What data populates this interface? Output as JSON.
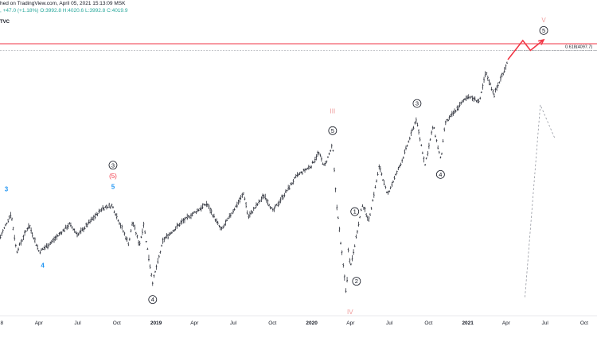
{
  "header": {
    "line1": "hed on TradingView.com, April 05, 2021 15:13:09 MSK",
    "line2_change": ", +47.0 (+1.18%)",
    "line2_ohlc": "O:3992.8 H:4020.6 L:3992.8 C:4019.9",
    "line3": "TVC"
  },
  "colors": {
    "resistance_line": "#f23645",
    "projection_arrow": "#f23645",
    "price_bars": "#131722",
    "wave_blue": "#2196f3",
    "wave_red": "#f23645",
    "wave_pink": "#ef9a9a",
    "ohlc_up": "#26a69a"
  },
  "chart_data": {
    "type": "line",
    "grid": false,
    "x_axis": {
      "tick_labels": [
        "8",
        "Apr",
        "Jul",
        "Oct",
        "2019",
        "Apr",
        "Jul",
        "Oct",
        "2020",
        "Apr",
        "Jul",
        "Oct",
        "2021",
        "Apr",
        "Jul",
        "Oct"
      ],
      "tick_dates": [
        "2018-01",
        "2018-04",
        "2018-07",
        "2018-10",
        "2019-01",
        "2019-04",
        "2019-07",
        "2019-10",
        "2020-01",
        "2020-04",
        "2020-07",
        "2020-10",
        "2021-01",
        "2021-04",
        "2021-07",
        "2021-10"
      ],
      "year_ticks": [
        "2019",
        "2020",
        "2021"
      ],
      "range": [
        "2017-12-31",
        "2021-10-31"
      ]
    },
    "y_axis": {
      "range": [
        2100,
        4300
      ],
      "scale": "linear"
    },
    "price_path": [
      [
        "2018-01-01",
        2695
      ],
      [
        "2018-01-26",
        2872
      ],
      [
        "2018-02-08",
        2581
      ],
      [
        "2018-03-09",
        2786
      ],
      [
        "2018-04-02",
        2581
      ],
      [
        "2018-05-01",
        2655
      ],
      [
        "2018-06-12",
        2790
      ],
      [
        "2018-07-02",
        2710
      ],
      [
        "2018-08-29",
        2914
      ],
      [
        "2018-09-20",
        2930
      ],
      [
        "2018-10-29",
        2641
      ],
      [
        "2018-11-07",
        2813
      ],
      [
        "2018-11-23",
        2633
      ],
      [
        "2018-12-03",
        2790
      ],
      [
        "2018-12-24",
        2351
      ],
      [
        "2019-01-18",
        2671
      ],
      [
        "2019-03-01",
        2803
      ],
      [
        "2019-04-30",
        2946
      ],
      [
        "2019-06-03",
        2744
      ],
      [
        "2019-07-26",
        3025
      ],
      [
        "2019-08-05",
        2844
      ],
      [
        "2019-09-12",
        3009
      ],
      [
        "2019-10-02",
        2888
      ],
      [
        "2019-11-27",
        3153
      ],
      [
        "2019-12-31",
        3231
      ],
      [
        "2020-01-17",
        3330
      ],
      [
        "2020-01-31",
        3225
      ],
      [
        "2020-02-19",
        3386
      ],
      [
        "2020-02-28",
        2954
      ],
      [
        "2020-03-23",
        2237
      ],
      [
        "2020-03-26",
        2630
      ],
      [
        "2020-04-01",
        2470
      ],
      [
        "2020-04-29",
        2939
      ],
      [
        "2020-05-14",
        2820
      ],
      [
        "2020-06-08",
        3232
      ],
      [
        "2020-06-26",
        3009
      ],
      [
        "2020-07-31",
        3271
      ],
      [
        "2020-09-02",
        3580
      ],
      [
        "2020-09-23",
        3237
      ],
      [
        "2020-10-12",
        3535
      ],
      [
        "2020-10-30",
        3270
      ],
      [
        "2020-11-09",
        3550
      ],
      [
        "2020-12-31",
        3756
      ],
      [
        "2021-01-29",
        3714
      ],
      [
        "2021-02-12",
        3934
      ],
      [
        "2021-03-04",
        3768
      ],
      [
        "2021-04-05",
        4019.9
      ]
    ],
    "levels": [
      {
        "kind": "resistance",
        "value": 4150
      },
      {
        "kind": "fibonacci",
        "value": 4097.7,
        "label": "0.618(4097.7)",
        "from": "2021-04-05"
      }
    ],
    "projection": {
      "arrow_path": [
        [
          "2021-04-05",
          4030
        ],
        [
          "2021-05-10",
          4175
        ],
        [
          "2021-05-28",
          4100
        ],
        [
          "2021-06-28",
          4180
        ]
      ],
      "dashed_path": [
        [
          "2021-05-15",
          2240
        ],
        [
          "2021-06-20",
          3690
        ],
        [
          "2021-07-25",
          3430
        ]
      ]
    },
    "annotations": [
      {
        "text": "3",
        "style": "blue",
        "x": "2018-01-15",
        "y": 3055
      },
      {
        "text": "4",
        "style": "blue",
        "x": "2018-04-10",
        "y": 2480
      },
      {
        "text": "5",
        "style": "blue",
        "x": "2018-09-22",
        "y": 3075
      },
      {
        "text": "(5)",
        "style": "red",
        "x": "2018-09-22",
        "y": 3155
      },
      {
        "text": "3",
        "style": "circle",
        "x": "2018-09-22",
        "y": 3235
      },
      {
        "text": "4",
        "style": "circle",
        "x": "2018-12-24",
        "y": 2222
      },
      {
        "text": "III",
        "style": "pink",
        "x": "2020-02-19",
        "y": 3645
      },
      {
        "text": "5",
        "style": "circle",
        "x": "2020-02-19",
        "y": 3495
      },
      {
        "text": "1",
        "style": "circle",
        "x": "2020-04-11",
        "y": 2885
      },
      {
        "text": "2",
        "style": "circle",
        "x": "2020-04-15",
        "y": 2360
      },
      {
        "text": "IV",
        "style": "pink",
        "x": "2020-03-31",
        "y": 2130
      },
      {
        "text": "3",
        "style": "circle",
        "x": "2020-09-04",
        "y": 3700
      },
      {
        "text": "4",
        "style": "circle",
        "x": "2020-10-29",
        "y": 3165
      },
      {
        "text": "V",
        "style": "pink",
        "x": "2021-06-28",
        "y": 4330
      },
      {
        "text": "5",
        "style": "circle",
        "x": "2021-06-28",
        "y": 4250
      }
    ]
  }
}
